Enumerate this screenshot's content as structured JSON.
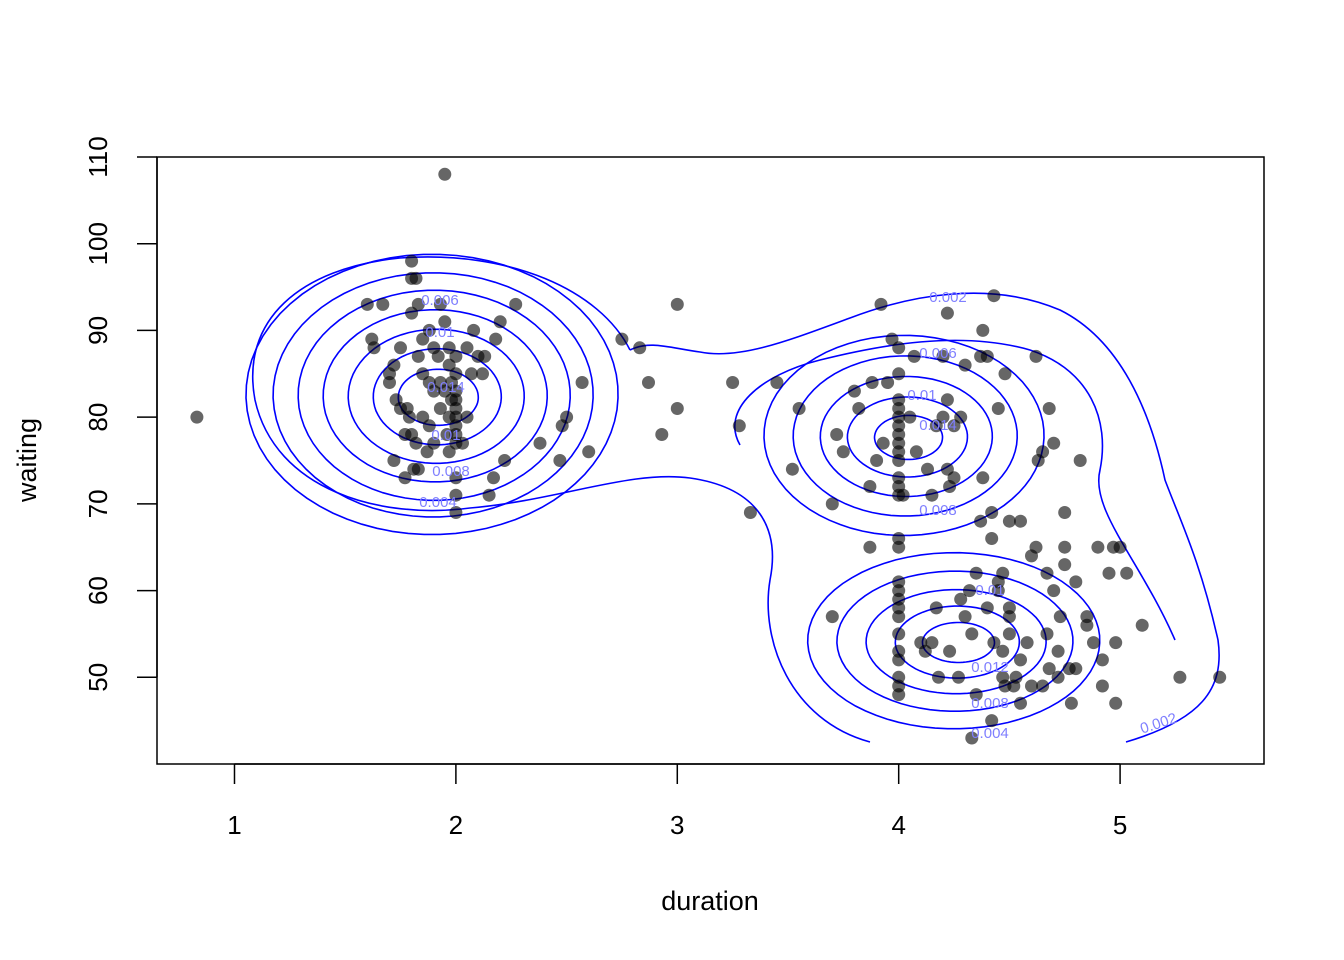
{
  "chart_data": {
    "type": "scatter",
    "title": "",
    "xlabel": "duration",
    "ylabel": "waiting",
    "xlim": [
      0.65,
      5.65
    ],
    "ylim": [
      40,
      110
    ],
    "x_ticks": [
      1,
      2,
      3,
      4,
      5
    ],
    "y_ticks": [
      50,
      60,
      70,
      80,
      90,
      100,
      110
    ],
    "grid": false,
    "legend": "none",
    "colors": {
      "points": "#000000",
      "point_opacity": 0.6,
      "contours": "#0000ff",
      "contour_labels": "#7f7fff"
    },
    "points": [
      {
        "x": 0.83,
        "y": 80
      },
      {
        "x": 1.95,
        "y": 108
      },
      {
        "x": 1.6,
        "y": 93
      },
      {
        "x": 1.67,
        "y": 93
      },
      {
        "x": 1.62,
        "y": 89
      },
      {
        "x": 1.63,
        "y": 88
      },
      {
        "x": 1.7,
        "y": 85
      },
      {
        "x": 1.72,
        "y": 86
      },
      {
        "x": 1.73,
        "y": 82
      },
      {
        "x": 1.75,
        "y": 81
      },
      {
        "x": 1.78,
        "y": 81
      },
      {
        "x": 1.77,
        "y": 78
      },
      {
        "x": 1.79,
        "y": 80
      },
      {
        "x": 1.72,
        "y": 75
      },
      {
        "x": 1.77,
        "y": 73
      },
      {
        "x": 1.81,
        "y": 74
      },
      {
        "x": 1.8,
        "y": 78
      },
      {
        "x": 1.82,
        "y": 77
      },
      {
        "x": 1.83,
        "y": 74
      },
      {
        "x": 1.85,
        "y": 80
      },
      {
        "x": 1.87,
        "y": 76
      },
      {
        "x": 1.88,
        "y": 79
      },
      {
        "x": 1.9,
        "y": 77
      },
      {
        "x": 1.93,
        "y": 81
      },
      {
        "x": 1.95,
        "y": 83
      },
      {
        "x": 1.93,
        "y": 84
      },
      {
        "x": 1.9,
        "y": 83
      },
      {
        "x": 1.88,
        "y": 84
      },
      {
        "x": 1.85,
        "y": 85
      },
      {
        "x": 1.83,
        "y": 87
      },
      {
        "x": 1.85,
        "y": 89
      },
      {
        "x": 1.88,
        "y": 90
      },
      {
        "x": 1.9,
        "y": 88
      },
      {
        "x": 1.92,
        "y": 87
      },
      {
        "x": 1.95,
        "y": 91
      },
      {
        "x": 1.93,
        "y": 93
      },
      {
        "x": 1.8,
        "y": 92
      },
      {
        "x": 1.83,
        "y": 93
      },
      {
        "x": 1.82,
        "y": 96
      },
      {
        "x": 1.8,
        "y": 96
      },
      {
        "x": 1.8,
        "y": 98
      },
      {
        "x": 1.75,
        "y": 88
      },
      {
        "x": 1.7,
        "y": 84
      },
      {
        "x": 1.97,
        "y": 88
      },
      {
        "x": 1.97,
        "y": 86
      },
      {
        "x": 1.98,
        "y": 84
      },
      {
        "x": 1.98,
        "y": 82
      },
      {
        "x": 1.97,
        "y": 80
      },
      {
        "x": 1.96,
        "y": 78
      },
      {
        "x": 1.97,
        "y": 76
      },
      {
        "x": 2.0,
        "y": 87
      },
      {
        "x": 2.0,
        "y": 85
      },
      {
        "x": 2.0,
        "y": 83
      },
      {
        "x": 2.0,
        "y": 82
      },
      {
        "x": 2.0,
        "y": 81
      },
      {
        "x": 2.0,
        "y": 80
      },
      {
        "x": 2.0,
        "y": 79
      },
      {
        "x": 2.0,
        "y": 78
      },
      {
        "x": 2.0,
        "y": 77
      },
      {
        "x": 2.0,
        "y": 73
      },
      {
        "x": 2.0,
        "y": 71
      },
      {
        "x": 2.0,
        "y": 69
      },
      {
        "x": 2.03,
        "y": 77
      },
      {
        "x": 2.05,
        "y": 80
      },
      {
        "x": 2.05,
        "y": 88
      },
      {
        "x": 2.07,
        "y": 85
      },
      {
        "x": 2.08,
        "y": 90
      },
      {
        "x": 2.1,
        "y": 87
      },
      {
        "x": 2.12,
        "y": 85
      },
      {
        "x": 2.13,
        "y": 87
      },
      {
        "x": 2.15,
        "y": 71
      },
      {
        "x": 2.17,
        "y": 73
      },
      {
        "x": 2.18,
        "y": 89
      },
      {
        "x": 2.2,
        "y": 91
      },
      {
        "x": 2.22,
        "y": 75
      },
      {
        "x": 2.27,
        "y": 93
      },
      {
        "x": 2.38,
        "y": 77
      },
      {
        "x": 2.47,
        "y": 75
      },
      {
        "x": 2.48,
        "y": 79
      },
      {
        "x": 2.5,
        "y": 80
      },
      {
        "x": 2.57,
        "y": 84
      },
      {
        "x": 2.6,
        "y": 76
      },
      {
        "x": 2.75,
        "y": 89
      },
      {
        "x": 2.83,
        "y": 88
      },
      {
        "x": 2.87,
        "y": 84
      },
      {
        "x": 2.93,
        "y": 78
      },
      {
        "x": 3.0,
        "y": 81
      },
      {
        "x": 3.0,
        "y": 93
      },
      {
        "x": 3.25,
        "y": 84
      },
      {
        "x": 3.28,
        "y": 79
      },
      {
        "x": 3.33,
        "y": 69
      },
      {
        "x": 3.45,
        "y": 84
      },
      {
        "x": 3.52,
        "y": 74
      },
      {
        "x": 3.55,
        "y": 81
      },
      {
        "x": 3.7,
        "y": 70
      },
      {
        "x": 3.72,
        "y": 78
      },
      {
        "x": 3.75,
        "y": 76
      },
      {
        "x": 3.7,
        "y": 57
      },
      {
        "x": 3.8,
        "y": 83
      },
      {
        "x": 3.82,
        "y": 81
      },
      {
        "x": 3.87,
        "y": 72
      },
      {
        "x": 3.88,
        "y": 84
      },
      {
        "x": 3.9,
        "y": 75
      },
      {
        "x": 3.92,
        "y": 93
      },
      {
        "x": 3.95,
        "y": 84
      },
      {
        "x": 3.97,
        "y": 89
      },
      {
        "x": 3.87,
        "y": 65
      },
      {
        "x": 3.93,
        "y": 77
      },
      {
        "x": 4.0,
        "y": 88
      },
      {
        "x": 4.0,
        "y": 85
      },
      {
        "x": 4.0,
        "y": 82
      },
      {
        "x": 4.0,
        "y": 81
      },
      {
        "x": 4.0,
        "y": 80
      },
      {
        "x": 4.0,
        "y": 79
      },
      {
        "x": 4.0,
        "y": 78
      },
      {
        "x": 4.0,
        "y": 77
      },
      {
        "x": 4.0,
        "y": 76
      },
      {
        "x": 4.0,
        "y": 75
      },
      {
        "x": 4.0,
        "y": 73
      },
      {
        "x": 4.0,
        "y": 72
      },
      {
        "x": 4.0,
        "y": 71
      },
      {
        "x": 4.0,
        "y": 66
      },
      {
        "x": 4.0,
        "y": 65
      },
      {
        "x": 4.0,
        "y": 61
      },
      {
        "x": 4.0,
        "y": 60
      },
      {
        "x": 4.0,
        "y": 59
      },
      {
        "x": 4.0,
        "y": 58
      },
      {
        "x": 4.0,
        "y": 57
      },
      {
        "x": 4.0,
        "y": 55
      },
      {
        "x": 4.0,
        "y": 53
      },
      {
        "x": 4.0,
        "y": 52
      },
      {
        "x": 4.0,
        "y": 50
      },
      {
        "x": 4.0,
        "y": 49
      },
      {
        "x": 4.0,
        "y": 48
      },
      {
        "x": 4.02,
        "y": 71
      },
      {
        "x": 4.05,
        "y": 80
      },
      {
        "x": 4.07,
        "y": 87
      },
      {
        "x": 4.08,
        "y": 76
      },
      {
        "x": 4.1,
        "y": 54
      },
      {
        "x": 4.12,
        "y": 53
      },
      {
        "x": 4.13,
        "y": 74
      },
      {
        "x": 4.15,
        "y": 54
      },
      {
        "x": 4.15,
        "y": 71
      },
      {
        "x": 4.17,
        "y": 58
      },
      {
        "x": 4.17,
        "y": 79
      },
      {
        "x": 4.18,
        "y": 50
      },
      {
        "x": 4.2,
        "y": 80
      },
      {
        "x": 4.2,
        "y": 87
      },
      {
        "x": 4.22,
        "y": 82
      },
      {
        "x": 4.22,
        "y": 74
      },
      {
        "x": 4.23,
        "y": 72
      },
      {
        "x": 4.23,
        "y": 53
      },
      {
        "x": 4.22,
        "y": 92
      },
      {
        "x": 4.25,
        "y": 79
      },
      {
        "x": 4.25,
        "y": 73
      },
      {
        "x": 4.27,
        "y": 50
      },
      {
        "x": 4.28,
        "y": 80
      },
      {
        "x": 4.28,
        "y": 59
      },
      {
        "x": 4.3,
        "y": 57
      },
      {
        "x": 4.3,
        "y": 86
      },
      {
        "x": 4.32,
        "y": 60
      },
      {
        "x": 4.33,
        "y": 55
      },
      {
        "x": 4.33,
        "y": 43
      },
      {
        "x": 4.35,
        "y": 48
      },
      {
        "x": 4.35,
        "y": 62
      },
      {
        "x": 4.37,
        "y": 68
      },
      {
        "x": 4.37,
        "y": 87
      },
      {
        "x": 4.38,
        "y": 73
      },
      {
        "x": 4.38,
        "y": 90
      },
      {
        "x": 4.4,
        "y": 58
      },
      {
        "x": 4.4,
        "y": 87
      },
      {
        "x": 4.42,
        "y": 69
      },
      {
        "x": 4.42,
        "y": 45
      },
      {
        "x": 4.43,
        "y": 94
      },
      {
        "x": 4.43,
        "y": 54
      },
      {
        "x": 4.45,
        "y": 60
      },
      {
        "x": 4.45,
        "y": 61
      },
      {
        "x": 4.45,
        "y": 81
      },
      {
        "x": 4.47,
        "y": 50
      },
      {
        "x": 4.47,
        "y": 53
      },
      {
        "x": 4.47,
        "y": 62
      },
      {
        "x": 4.48,
        "y": 85
      },
      {
        "x": 4.48,
        "y": 49
      },
      {
        "x": 4.5,
        "y": 55
      },
      {
        "x": 4.5,
        "y": 58
      },
      {
        "x": 4.5,
        "y": 68
      },
      {
        "x": 4.5,
        "y": 57
      },
      {
        "x": 4.52,
        "y": 49
      },
      {
        "x": 4.53,
        "y": 50
      },
      {
        "x": 4.55,
        "y": 52
      },
      {
        "x": 4.55,
        "y": 68
      },
      {
        "x": 4.58,
        "y": 54
      },
      {
        "x": 4.6,
        "y": 49
      },
      {
        "x": 4.6,
        "y": 64
      },
      {
        "x": 4.62,
        "y": 65
      },
      {
        "x": 4.62,
        "y": 87
      },
      {
        "x": 4.63,
        "y": 75
      },
      {
        "x": 4.65,
        "y": 76
      },
      {
        "x": 4.67,
        "y": 55
      },
      {
        "x": 4.67,
        "y": 62
      },
      {
        "x": 4.68,
        "y": 51
      },
      {
        "x": 4.68,
        "y": 81
      },
      {
        "x": 4.7,
        "y": 60
      },
      {
        "x": 4.7,
        "y": 77
      },
      {
        "x": 4.72,
        "y": 53
      },
      {
        "x": 4.72,
        "y": 50
      },
      {
        "x": 4.73,
        "y": 57
      },
      {
        "x": 4.75,
        "y": 69
      },
      {
        "x": 4.75,
        "y": 65
      },
      {
        "x": 4.75,
        "y": 63
      },
      {
        "x": 4.77,
        "y": 51
      },
      {
        "x": 4.78,
        "y": 47
      },
      {
        "x": 4.8,
        "y": 61
      },
      {
        "x": 4.8,
        "y": 51
      },
      {
        "x": 4.82,
        "y": 75
      },
      {
        "x": 4.85,
        "y": 57
      },
      {
        "x": 4.85,
        "y": 56
      },
      {
        "x": 4.88,
        "y": 54
      },
      {
        "x": 4.9,
        "y": 65
      },
      {
        "x": 4.92,
        "y": 52
      },
      {
        "x": 4.92,
        "y": 49
      },
      {
        "x": 4.95,
        "y": 62
      },
      {
        "x": 4.97,
        "y": 65
      },
      {
        "x": 4.98,
        "y": 54
      },
      {
        "x": 4.98,
        "y": 47
      },
      {
        "x": 5.0,
        "y": 65
      },
      {
        "x": 5.03,
        "y": 62
      },
      {
        "x": 5.1,
        "y": 56
      },
      {
        "x": 5.27,
        "y": 50
      },
      {
        "x": 5.45,
        "y": 50
      },
      {
        "x": 4.65,
        "y": 49
      },
      {
        "x": 4.55,
        "y": 47
      },
      {
        "x": 4.42,
        "y": 66
      }
    ],
    "contour_labels": [
      "0.002",
      "0.002",
      "0.004",
      "0.004",
      "0.006",
      "0.006",
      "0.008",
      "0.008",
      "0.008",
      "0.01",
      "0.01",
      "0.01",
      "0.012",
      "0.014",
      "0.014",
      "0.01"
    ]
  }
}
